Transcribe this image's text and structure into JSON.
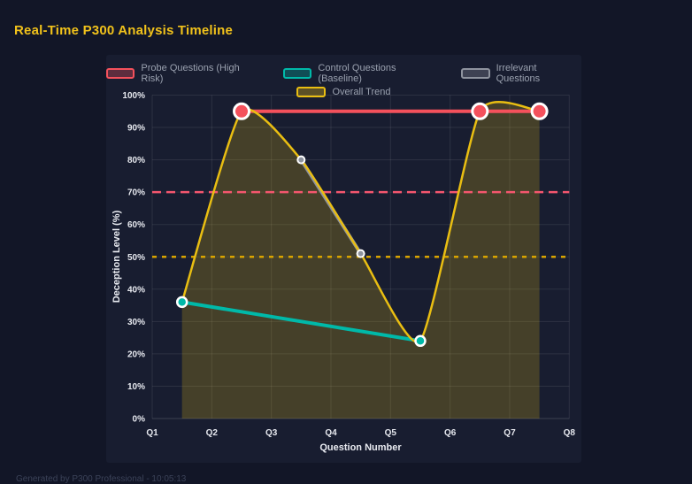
{
  "page": {
    "title": "Real-Time P300 Analysis Timeline",
    "footer": "Generated by P300 Professional - 10:05:13",
    "colors": {
      "background": "#121627",
      "card_background": "#181d30",
      "title": "#f1c21b",
      "legend_text": "#9aa1af",
      "tick_text": "#e7e9ef",
      "grid": "rgba(255,255,255,0.09)"
    }
  },
  "chart_data": {
    "type": "line",
    "title": "Real-Time P300 Analysis Timeline",
    "xlabel": "Question Number",
    "ylabel": "Deception Level (%)",
    "xlim": [
      1,
      8
    ],
    "ylim": [
      0,
      100
    ],
    "grid": true,
    "legend_position": "top",
    "x_ticks": [
      {
        "value": 1,
        "label": "Q1"
      },
      {
        "value": 2,
        "label": "Q2"
      },
      {
        "value": 3,
        "label": "Q3"
      },
      {
        "value": 4,
        "label": "Q4"
      },
      {
        "value": 5,
        "label": "Q5"
      },
      {
        "value": 6,
        "label": "Q6"
      },
      {
        "value": 7,
        "label": "Q7"
      },
      {
        "value": 8,
        "label": "Q8"
      }
    ],
    "y_ticks": [
      {
        "value": 0,
        "label": "0%"
      },
      {
        "value": 10,
        "label": "10%"
      },
      {
        "value": 20,
        "label": "20%"
      },
      {
        "value": 30,
        "label": "30%"
      },
      {
        "value": 40,
        "label": "40%"
      },
      {
        "value": 50,
        "label": "50%"
      },
      {
        "value": 60,
        "label": "60%"
      },
      {
        "value": 70,
        "label": "70%"
      },
      {
        "value": 80,
        "label": "80%"
      },
      {
        "value": 90,
        "label": "90%"
      },
      {
        "value": 100,
        "label": "100%"
      }
    ],
    "series": [
      {
        "name": "Probe Questions (High Risk)",
        "color": "#f4515c",
        "line_width": 4,
        "marker_radius": 8.5,
        "marker_border_width": 3,
        "marker_border_color": "#ffffff",
        "smooth": false,
        "points": [
          [
            2.5,
            95
          ],
          [
            6.5,
            95
          ],
          [
            7.5,
            95
          ]
        ]
      },
      {
        "name": "Control Questions (Baseline)",
        "color": "#00b9a9",
        "line_width": 4,
        "marker_radius": 5.5,
        "marker_border_width": 2.5,
        "marker_border_color": "#ffffff",
        "smooth": false,
        "points": [
          [
            1.5,
            36
          ],
          [
            5.5,
            24
          ]
        ]
      },
      {
        "name": "Irrelevant Questions",
        "color": "#8e939e",
        "line_width": 4,
        "marker_radius": 4,
        "marker_border_width": 2,
        "marker_border_color": "#ffffff",
        "smooth": false,
        "points": [
          [
            3.5,
            80
          ],
          [
            4.5,
            51
          ]
        ]
      },
      {
        "name": "Overall Trend",
        "color": "#e9be12",
        "line_width": 2.5,
        "marker_radius": 0,
        "smooth": true,
        "fill": "rgba(233,190,18,0.22)",
        "points": [
          [
            1.5,
            36
          ],
          [
            2.5,
            95
          ],
          [
            3.5,
            80
          ],
          [
            4.5,
            51
          ],
          [
            5.5,
            24
          ],
          [
            6.5,
            95
          ],
          [
            7.5,
            95
          ]
        ]
      }
    ],
    "thresholds": [
      {
        "value": 70,
        "color": "#f4566e",
        "dash": "10 6",
        "width": 2.5
      },
      {
        "value": 50,
        "color": "#d9a400",
        "dash": "5 6",
        "width": 2.5
      }
    ]
  }
}
